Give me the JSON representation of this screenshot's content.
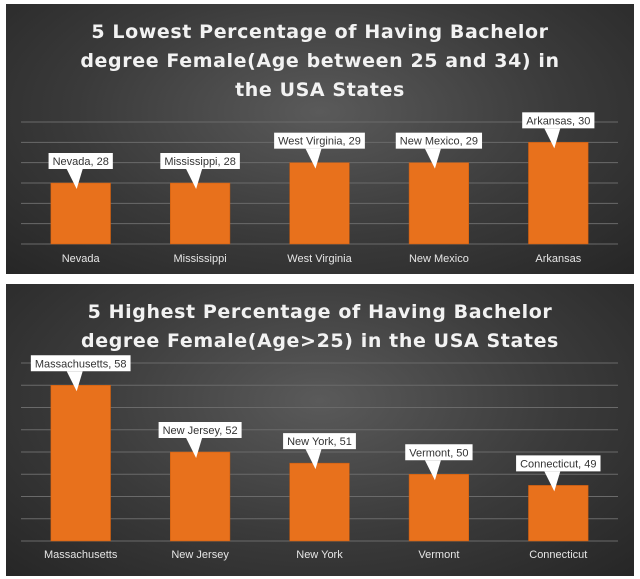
{
  "chart_data": [
    {
      "type": "bar",
      "title": "5 Lowest Percentage of Having Bachelor degree Female(Age between 25 and 34) in the USA States",
      "categories": [
        "Nevada",
        "Mississippi",
        "West Virginia",
        "New Mexico",
        "Arkansas"
      ],
      "values": [
        28,
        28,
        29,
        29,
        30
      ],
      "data_labels": [
        "Nevada, 28",
        "Mississippi, 28",
        "West Virginia, 29",
        "New Mexico, 29",
        "Arkansas, 30"
      ],
      "ylim": [
        25,
        31
      ],
      "grid": true,
      "bar_color": "#e8711c"
    },
    {
      "type": "bar",
      "title": "5 Highest Percentage of Having Bachelor degree Female(Age>25) in the USA States",
      "categories": [
        "Massachusetts",
        "New Jersey",
        "New York",
        "Vermont",
        "Connecticut"
      ],
      "values": [
        58,
        52,
        51,
        50,
        49
      ],
      "data_labels": [
        "Massachusetts, 58",
        "New Jersey, 52",
        "New York, 51",
        "Vermont, 50",
        "Connecticut, 49"
      ],
      "ylim": [
        44,
        60
      ],
      "grid": true,
      "bar_color": "#e8711c"
    }
  ]
}
